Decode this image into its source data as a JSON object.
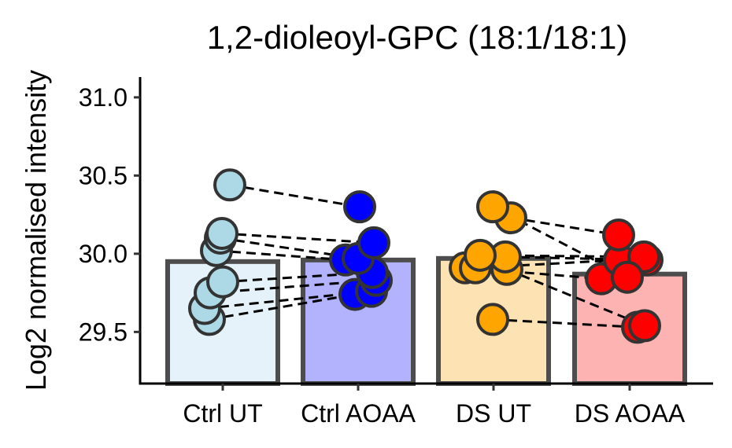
{
  "chart_data": {
    "type": "bar",
    "title": "1,2-dioleoyl-GPC (18:1/18:1)",
    "xlabel": "",
    "ylabel": "Log2 normalised intensity",
    "categories": [
      "Ctrl UT",
      "Ctrl AOAA",
      "DS UT",
      "DS AOAA"
    ],
    "ylim": [
      29.17,
      31.13
    ],
    "yticks": [
      29.5,
      30.0,
      30.5,
      31.0
    ],
    "ytick_labels": [
      "29.5",
      "30.0",
      "30.5",
      "31.0"
    ],
    "grid": false,
    "legend": "none",
    "bar_fill_colors": [
      "#e6f2f9",
      "#b3b3fd",
      "#fde2b3",
      "#feb3b3"
    ],
    "point_colors": [
      "#add8e6",
      "#0000ff",
      "#ffa500",
      "#ff0000"
    ],
    "bar_values": [
      29.95,
      29.96,
      29.97,
      29.87
    ],
    "points": [
      [
        29.58,
        29.65,
        29.75,
        29.82,
        30.02,
        30.1,
        30.13,
        30.44
      ],
      [
        29.74,
        29.76,
        29.83,
        29.88,
        29.96,
        29.97,
        30.07,
        30.3
      ],
      [
        29.58,
        29.9,
        29.91,
        29.91,
        29.98,
        29.99,
        30.23,
        30.3
      ],
      [
        29.53,
        29.54,
        29.84,
        29.96,
        29.96,
        29.98,
        30.12,
        29.85
      ]
    ],
    "pairs": [
      [
        [
          0,
          0
        ],
        [
          1,
          0
        ]
      ],
      [
        [
          0,
          1
        ],
        [
          1,
          1
        ]
      ],
      [
        [
          0,
          2
        ],
        [
          1,
          2
        ]
      ],
      [
        [
          0,
          3
        ],
        [
          1,
          3
        ]
      ],
      [
        [
          0,
          4
        ],
        [
          1,
          4
        ]
      ],
      [
        [
          0,
          5
        ],
        [
          1,
          5
        ]
      ],
      [
        [
          0,
          6
        ],
        [
          1,
          6
        ]
      ],
      [
        [
          0,
          7
        ],
        [
          1,
          7
        ]
      ],
      [
        [
          2,
          0
        ],
        [
          3,
          0
        ]
      ],
      [
        [
          2,
          1
        ],
        [
          3,
          1
        ]
      ],
      [
        [
          2,
          2
        ],
        [
          3,
          2
        ]
      ],
      [
        [
          2,
          3
        ],
        [
          3,
          3
        ]
      ],
      [
        [
          2,
          4
        ],
        [
          3,
          4
        ]
      ],
      [
        [
          2,
          5
        ],
        [
          3,
          5
        ]
      ],
      [
        [
          2,
          6
        ],
        [
          3,
          6
        ]
      ],
      [
        [
          2,
          7
        ],
        [
          3,
          7
        ]
      ]
    ]
  }
}
